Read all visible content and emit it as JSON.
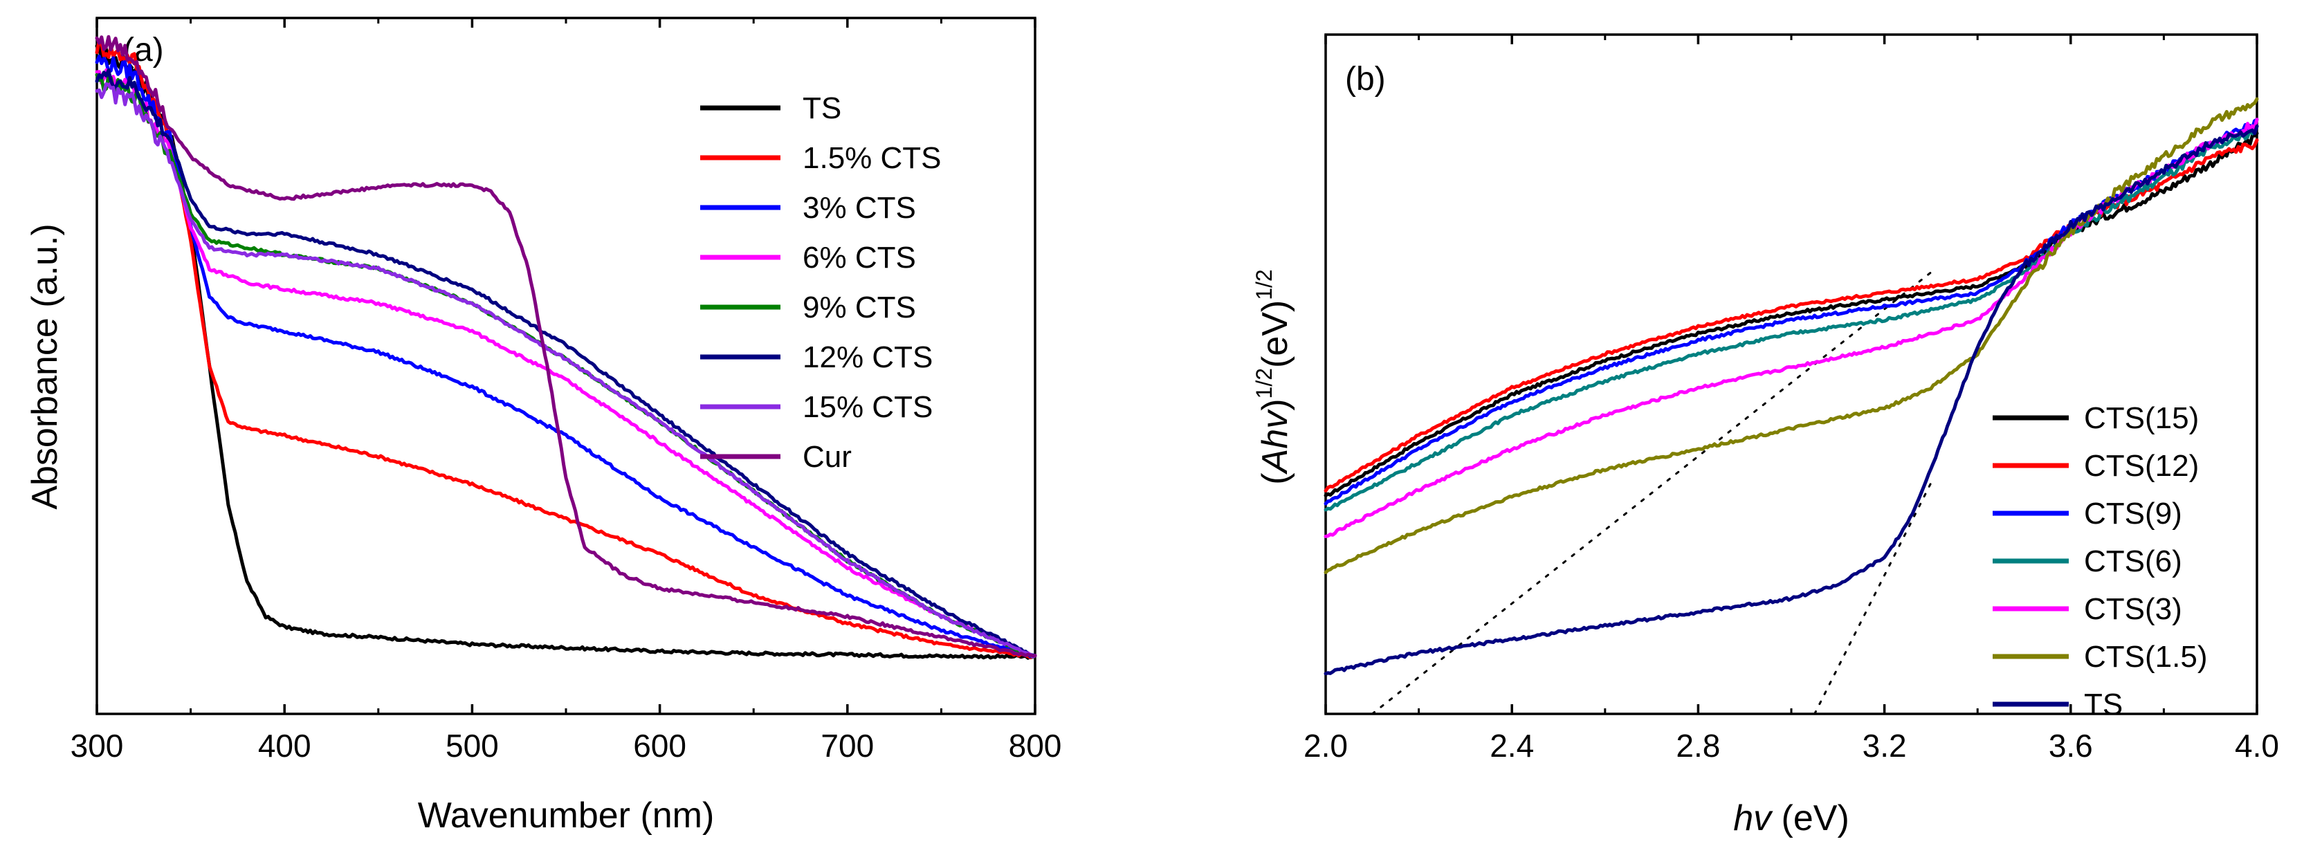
{
  "chart_data": [
    {
      "panel": "(a)",
      "type": "line",
      "title": "",
      "xlabel": "Wavenumber (nm)",
      "ylabel": "Absorbance (a.u.)",
      "xlim": [
        300,
        800
      ],
      "ylim": [
        0,
        1.0
      ],
      "xticks": [
        "300",
        "400",
        "500",
        "600",
        "700",
        "800"
      ],
      "yticks": [],
      "legend_position": "top-right",
      "series": [
        {
          "name": "TS",
          "color": "#000000",
          "x": [
            300,
            320,
            340,
            350,
            360,
            370,
            380,
            390,
            400,
            420,
            450,
            500,
            550,
            600,
            650,
            700,
            750,
            800
          ],
          "y": [
            0.95,
            0.93,
            0.83,
            0.7,
            0.5,
            0.3,
            0.19,
            0.14,
            0.125,
            0.115,
            0.11,
            0.1,
            0.095,
            0.09,
            0.087,
            0.085,
            0.083,
            0.082
          ]
        },
        {
          "name": "1.5% CTS",
          "color": "#ff0000",
          "x": [
            300,
            320,
            340,
            350,
            360,
            370,
            380,
            400,
            450,
            500,
            550,
            600,
            650,
            700,
            750,
            800
          ],
          "y": [
            0.96,
            0.94,
            0.82,
            0.68,
            0.5,
            0.42,
            0.41,
            0.4,
            0.37,
            0.33,
            0.28,
            0.23,
            0.17,
            0.13,
            0.1,
            0.082
          ]
        },
        {
          "name": "3% CTS",
          "color": "#0000ff",
          "x": [
            300,
            320,
            340,
            350,
            360,
            370,
            380,
            400,
            450,
            500,
            550,
            600,
            650,
            700,
            750,
            800
          ],
          "y": [
            0.94,
            0.92,
            0.82,
            0.7,
            0.6,
            0.57,
            0.56,
            0.55,
            0.52,
            0.47,
            0.4,
            0.31,
            0.24,
            0.17,
            0.12,
            0.082
          ]
        },
        {
          "name": "6% CTS",
          "color": "#ff00ff",
          "x": [
            300,
            320,
            340,
            350,
            360,
            380,
            400,
            450,
            500,
            550,
            600,
            650,
            700,
            750,
            800
          ],
          "y": [
            0.92,
            0.9,
            0.8,
            0.7,
            0.64,
            0.62,
            0.61,
            0.59,
            0.55,
            0.48,
            0.39,
            0.3,
            0.21,
            0.14,
            0.082
          ]
        },
        {
          "name": "9% CTS",
          "color": "#008000",
          "x": [
            300,
            320,
            340,
            350,
            360,
            380,
            400,
            450,
            500,
            550,
            600,
            650,
            700,
            750,
            800
          ],
          "y": [
            0.91,
            0.89,
            0.8,
            0.72,
            0.68,
            0.67,
            0.66,
            0.64,
            0.59,
            0.51,
            0.42,
            0.32,
            0.22,
            0.14,
            0.082
          ]
        },
        {
          "name": "12% CTS",
          "color": "#000080",
          "x": [
            300,
            320,
            340,
            350,
            360,
            380,
            400,
            450,
            500,
            550,
            600,
            650,
            700,
            750,
            800
          ],
          "y": [
            0.92,
            0.9,
            0.82,
            0.74,
            0.7,
            0.69,
            0.69,
            0.66,
            0.61,
            0.53,
            0.43,
            0.33,
            0.23,
            0.15,
            0.082
          ]
        },
        {
          "name": "15% CTS",
          "color": "#8a2be2",
          "x": [
            300,
            320,
            340,
            350,
            360,
            380,
            400,
            450,
            500,
            550,
            600,
            650,
            700,
            750,
            800
          ],
          "y": [
            0.9,
            0.88,
            0.79,
            0.71,
            0.67,
            0.66,
            0.66,
            0.64,
            0.59,
            0.51,
            0.42,
            0.32,
            0.22,
            0.14,
            0.082
          ]
        },
        {
          "name": "Cur",
          "color": "#800080",
          "x": [
            300,
            310,
            320,
            330,
            340,
            350,
            370,
            400,
            430,
            460,
            480,
            500,
            510,
            520,
            530,
            540,
            550,
            560,
            580,
            600,
            650,
            700,
            750,
            800
          ],
          "y": [
            0.97,
            0.96,
            0.94,
            0.9,
            0.84,
            0.8,
            0.76,
            0.74,
            0.75,
            0.76,
            0.76,
            0.76,
            0.75,
            0.72,
            0.64,
            0.5,
            0.34,
            0.24,
            0.2,
            0.18,
            0.16,
            0.14,
            0.11,
            0.082
          ]
        }
      ]
    },
    {
      "panel": "(b)",
      "type": "line",
      "title": "",
      "xlabel": "hv (eV)",
      "xlabel_italic": "hv",
      "xlabel_rest": " (eV)",
      "ylabel": "(Ahv)1/2(eV)1/2",
      "ylabel_parts": {
        "open": "(",
        "italic": "Ahv",
        "close": ")",
        "sup1": "1/2",
        "mid": "(eV)",
        "sup2": "1/2"
      },
      "xlim": [
        2.0,
        4.0
      ],
      "ylim": [
        0,
        1.0
      ],
      "xticks": [
        "2.0",
        "2.4",
        "2.8",
        "3.2",
        "3.6",
        "4.0"
      ],
      "yticks": [],
      "legend_position": "bottom-right",
      "series": [
        {
          "name": "CTS(15)",
          "color": "#000000",
          "x": [
            2.0,
            2.2,
            2.4,
            2.6,
            2.8,
            3.0,
            3.2,
            3.4,
            3.5,
            3.6,
            3.7,
            3.8,
            3.9,
            4.0
          ],
          "y": [
            0.32,
            0.4,
            0.47,
            0.52,
            0.56,
            0.59,
            0.61,
            0.63,
            0.66,
            0.71,
            0.74,
            0.77,
            0.81,
            0.85
          ]
        },
        {
          "name": "CTS(12)",
          "color": "#ff0000",
          "x": [
            2.0,
            2.2,
            2.4,
            2.6,
            2.8,
            3.0,
            3.2,
            3.4,
            3.5,
            3.6,
            3.7,
            3.8,
            3.9,
            4.0
          ],
          "y": [
            0.33,
            0.41,
            0.48,
            0.53,
            0.57,
            0.6,
            0.62,
            0.64,
            0.67,
            0.72,
            0.75,
            0.78,
            0.82,
            0.84
          ]
        },
        {
          "name": "CTS(9)",
          "color": "#0000ff",
          "x": [
            2.0,
            2.2,
            2.4,
            2.6,
            2.8,
            3.0,
            3.2,
            3.4,
            3.5,
            3.6,
            3.7,
            3.8,
            3.9,
            4.0
          ],
          "y": [
            0.31,
            0.39,
            0.46,
            0.51,
            0.55,
            0.58,
            0.6,
            0.62,
            0.66,
            0.72,
            0.76,
            0.8,
            0.84,
            0.87
          ]
        },
        {
          "name": "CTS(6)",
          "color": "#008080",
          "x": [
            2.0,
            2.2,
            2.4,
            2.6,
            2.8,
            3.0,
            3.2,
            3.4,
            3.5,
            3.6,
            3.7,
            3.8,
            3.9,
            4.0
          ],
          "y": [
            0.3,
            0.37,
            0.44,
            0.49,
            0.53,
            0.56,
            0.58,
            0.61,
            0.65,
            0.71,
            0.75,
            0.79,
            0.83,
            0.86
          ]
        },
        {
          "name": "CTS(3)",
          "color": "#ff00ff",
          "x": [
            2.0,
            2.2,
            2.4,
            2.6,
            2.8,
            3.0,
            3.2,
            3.4,
            3.5,
            3.6,
            3.7,
            3.8,
            3.9,
            4.0
          ],
          "y": [
            0.26,
            0.33,
            0.39,
            0.44,
            0.48,
            0.51,
            0.54,
            0.58,
            0.64,
            0.71,
            0.76,
            0.8,
            0.84,
            0.87
          ]
        },
        {
          "name": "CTS(1.5)",
          "color": "#808000",
          "x": [
            2.0,
            2.2,
            2.4,
            2.6,
            2.8,
            3.0,
            3.2,
            3.3,
            3.4,
            3.5,
            3.6,
            3.7,
            3.8,
            3.9,
            4.0
          ],
          "y": [
            0.21,
            0.27,
            0.32,
            0.36,
            0.39,
            0.42,
            0.45,
            0.48,
            0.53,
            0.63,
            0.71,
            0.77,
            0.82,
            0.87,
            0.9
          ]
        },
        {
          "name": "TS",
          "color": "#000080",
          "x": [
            2.0,
            2.2,
            2.4,
            2.6,
            2.8,
            3.0,
            3.1,
            3.2,
            3.25,
            3.3,
            3.35,
            3.4,
            3.45,
            3.5,
            3.6,
            3.7,
            3.8,
            3.9,
            4.0
          ],
          "y": [
            0.06,
            0.09,
            0.11,
            0.13,
            0.15,
            0.17,
            0.19,
            0.23,
            0.28,
            0.36,
            0.45,
            0.54,
            0.61,
            0.66,
            0.72,
            0.76,
            0.8,
            0.84,
            0.86
          ]
        }
      ],
      "fit_lines": [
        {
          "x": [
            2.1,
            3.3
          ],
          "y": [
            0.0,
            0.65
          ]
        },
        {
          "x": [
            3.05,
            3.3
          ],
          "y": [
            0.0,
            0.34
          ]
        }
      ]
    }
  ]
}
